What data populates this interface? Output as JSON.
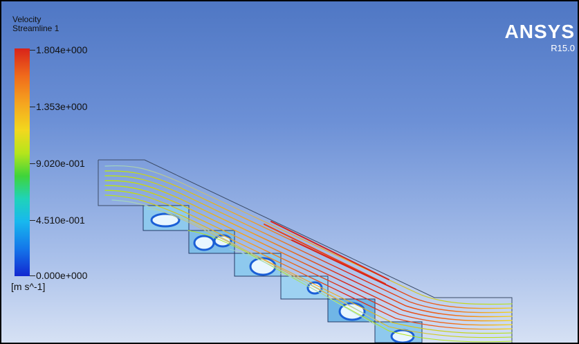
{
  "legend": {
    "title": "Velocity",
    "subtitle": "Streamline 1",
    "ticks": [
      "1.804e+000",
      "1.353e+000",
      "9.020e-001",
      "4.510e-001",
      "0.000e+000"
    ],
    "unit": "[m s^-1]"
  },
  "brand": {
    "name": "ANSYS",
    "version": "R15.0"
  },
  "colors": {
    "background_top": "#4f77c4",
    "background_bottom": "#d6e1f4",
    "velocity_max": "#d8231a",
    "velocity_mid": "#3fd43a",
    "velocity_min": "#1227d0"
  }
}
